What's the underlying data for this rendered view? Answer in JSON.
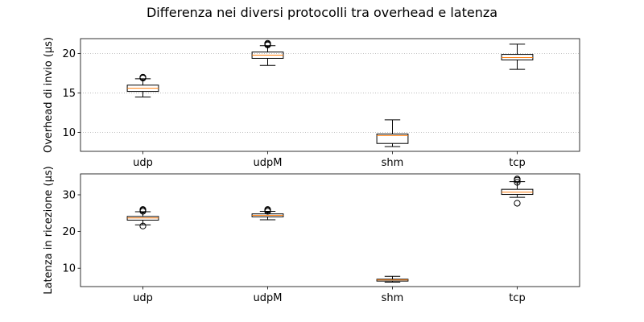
{
  "figure": {
    "title": "Differenza nei diversi protocolli tra overhead e latenza"
  },
  "chart_data": [
    {
      "type": "box",
      "title": "",
      "xlabel": "",
      "ylabel": "Overhead di invio (µs)",
      "ylim": [
        7.6,
        21.9
      ],
      "yticks": [
        10,
        15,
        20
      ],
      "grid": "y-dotted",
      "categories": [
        "udp",
        "udpM",
        "shm",
        "tcp"
      ],
      "boxes": [
        {
          "label": "udp",
          "whislo": 14.5,
          "q1": 15.2,
          "med": 15.6,
          "q3": 16.0,
          "whishi": 16.8,
          "fliers": [
            16.9,
            17.0,
            17.0
          ]
        },
        {
          "label": "udpM",
          "whislo": 18.5,
          "q1": 19.4,
          "med": 19.8,
          "q3": 20.2,
          "whishi": 21.0,
          "fliers": [
            21.1,
            21.2,
            21.3
          ]
        },
        {
          "label": "shm",
          "whislo": 8.2,
          "q1": 8.6,
          "med": 9.6,
          "q3": 9.8,
          "whishi": 11.6,
          "fliers": []
        },
        {
          "label": "tcp",
          "whislo": 18.0,
          "q1": 19.2,
          "med": 19.5,
          "q3": 19.9,
          "whishi": 21.2,
          "fliers": []
        }
      ]
    },
    {
      "type": "box",
      "title": "",
      "xlabel": "",
      "ylabel": "Latenza in ricezione (µs)",
      "ylim": [
        5.0,
        35.7
      ],
      "yticks": [
        10,
        20,
        30
      ],
      "grid": "none",
      "categories": [
        "udp",
        "udpM",
        "shm",
        "tcp"
      ],
      "boxes": [
        {
          "label": "udp",
          "whislo": 21.8,
          "q1": 23.1,
          "med": 23.7,
          "q3": 24.1,
          "whishi": 25.4,
          "fliers": [
            21.5,
            25.5,
            25.8,
            26.0
          ]
        },
        {
          "label": "udpM",
          "whislo": 23.2,
          "q1": 24.0,
          "med": 24.4,
          "q3": 24.8,
          "whishi": 25.5,
          "fliers": [
            25.5,
            25.8,
            26.0
          ]
        },
        {
          "label": "shm",
          "whislo": 6.2,
          "q1": 6.5,
          "med": 6.8,
          "q3": 7.0,
          "whishi": 7.8,
          "fliers": []
        },
        {
          "label": "tcp",
          "whislo": 29.3,
          "q1": 30.1,
          "med": 30.7,
          "q3": 31.5,
          "whishi": 33.6,
          "fliers": [
            27.7,
            33.4,
            34.0,
            34.3
          ]
        }
      ]
    }
  ]
}
